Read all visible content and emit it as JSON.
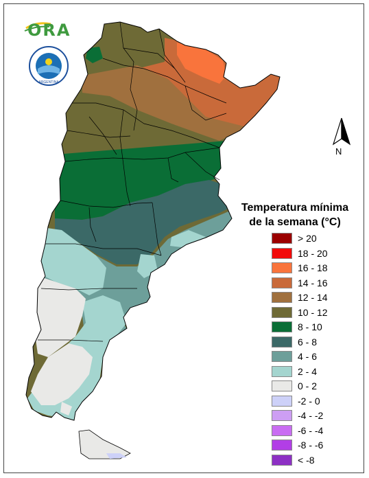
{
  "legend": {
    "title_line1": "Temperatura mínima",
    "title_line2": "de la semana (°C)",
    "items": [
      {
        "label": "> 20",
        "color": "#9b0000"
      },
      {
        "label": "18 - 20",
        "color": "#f20a0a"
      },
      {
        "label": "16 - 18",
        "color": "#f9743c"
      },
      {
        "label": "14 - 16",
        "color": "#c96a3a"
      },
      {
        "label": "12 - 14",
        "color": "#a0703e"
      },
      {
        "label": "10 - 12",
        "color": "#6e6a36"
      },
      {
        "label": "8 - 10",
        "color": "#0a6e36"
      },
      {
        "label": "6 - 8",
        "color": "#3b6967"
      },
      {
        "label": "4 - 6",
        "color": "#6d9f9a"
      },
      {
        "label": "2 - 4",
        "color": "#a4d5cf"
      },
      {
        "label": "0 - 2",
        "color": "#e9e9e7"
      },
      {
        "label": "-2 - 0",
        "color": "#cdd1f8"
      },
      {
        "label": "-4 - -2",
        "color": "#cd9ef3"
      },
      {
        "label": "-6 - -4",
        "color": "#c96df2"
      },
      {
        "label": "-8 - -6",
        "color": "#b23ee6"
      },
      {
        "label": "< -8",
        "color": "#8d30c4"
      }
    ]
  },
  "north_label": "N",
  "logo_text": "ORA",
  "smn_logo_text": "SERVICIO METEOROLOGICO NACIONAL",
  "smn_logo_country": "ARGENTINA",
  "icons": {
    "north_arrow": "north-arrow-icon",
    "ora_logo": "ora-logo",
    "smn_logo": "smn-logo"
  }
}
